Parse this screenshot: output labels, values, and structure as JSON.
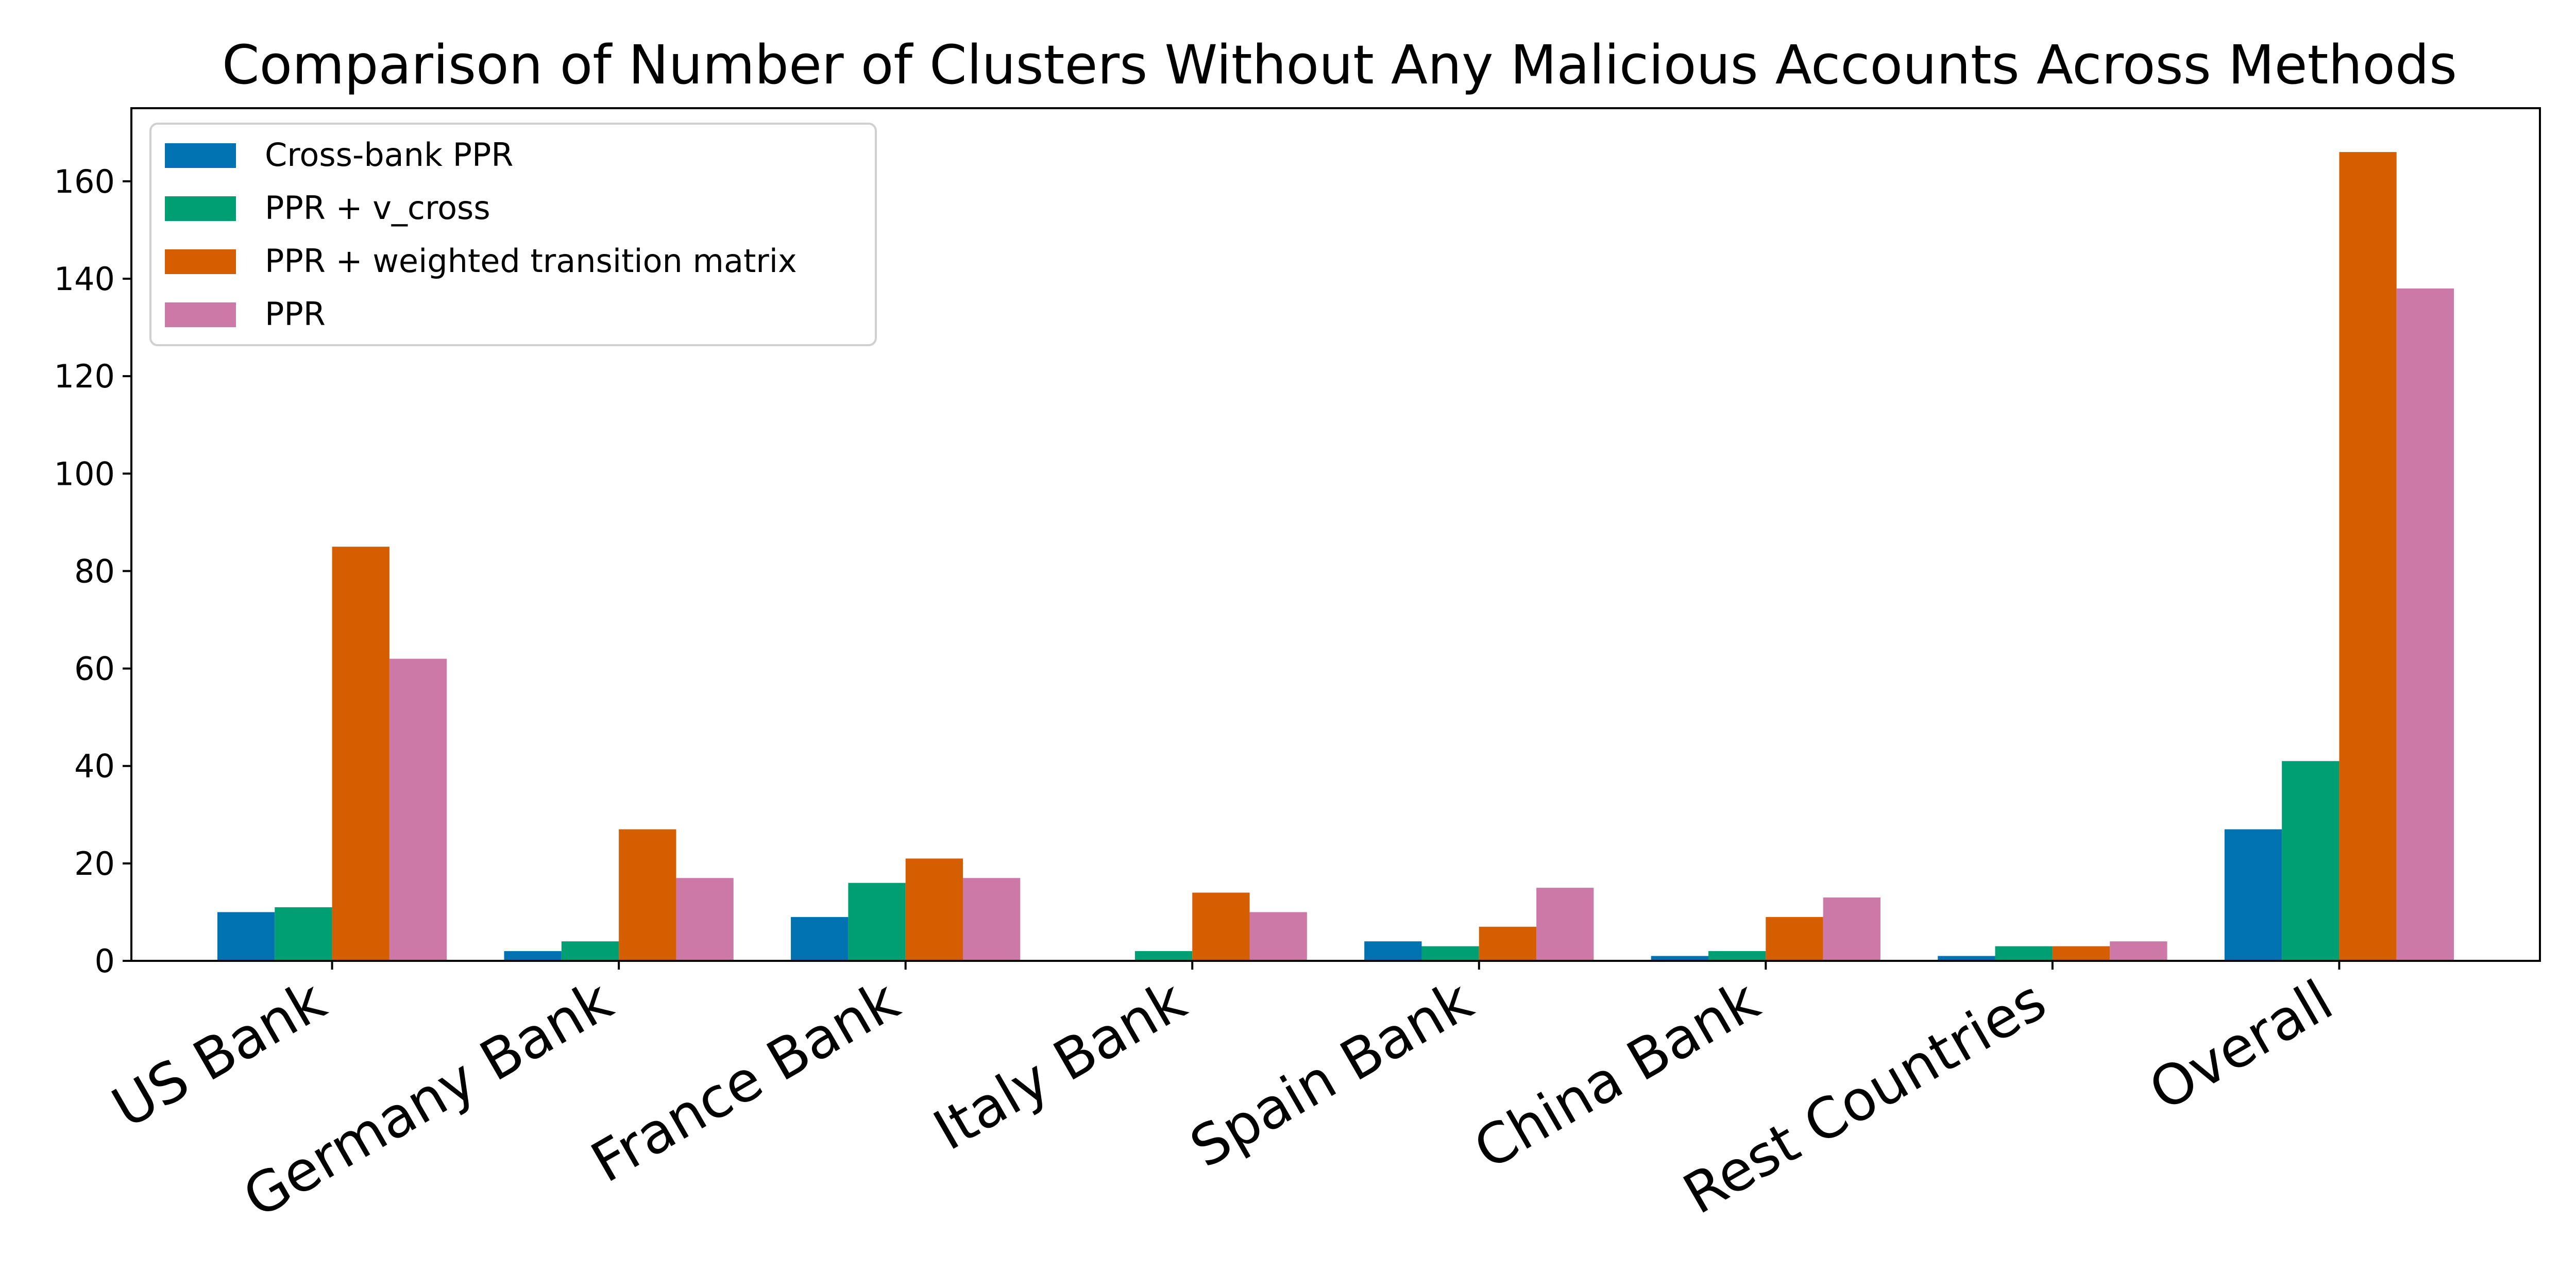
{
  "chart_data": {
    "type": "bar",
    "title": "Comparison of Number of Clusters Without Any Malicious Accounts Across Methods",
    "xlabel": "",
    "ylabel": "",
    "categories": [
      "US Bank",
      "Germany Bank",
      "France Bank",
      "Italy Bank",
      "Spain Bank",
      "China Bank",
      "Rest Countries",
      "Overall"
    ],
    "series": [
      {
        "name": "Cross-bank PPR",
        "color": "#0072b2",
        "values": [
          10,
          2,
          9,
          0,
          4,
          1,
          1,
          27
        ]
      },
      {
        "name": "PPR + v_cross",
        "color": "#009e73",
        "values": [
          11,
          4,
          16,
          2,
          3,
          2,
          3,
          41
        ]
      },
      {
        "name": "PPR + weighted transition matrix",
        "color": "#d55e00",
        "values": [
          85,
          27,
          21,
          14,
          7,
          9,
          3,
          166
        ]
      },
      {
        "name": "PPR",
        "color": "#cc79a7",
        "values": [
          62,
          17,
          17,
          10,
          15,
          13,
          4,
          138
        ]
      }
    ],
    "ylim": [
      0,
      175
    ],
    "yticks": [
      0,
      20,
      40,
      60,
      80,
      100,
      120,
      140,
      160
    ],
    "grid": false,
    "legend_position": "upper left",
    "xtick_rotation": 30
  }
}
